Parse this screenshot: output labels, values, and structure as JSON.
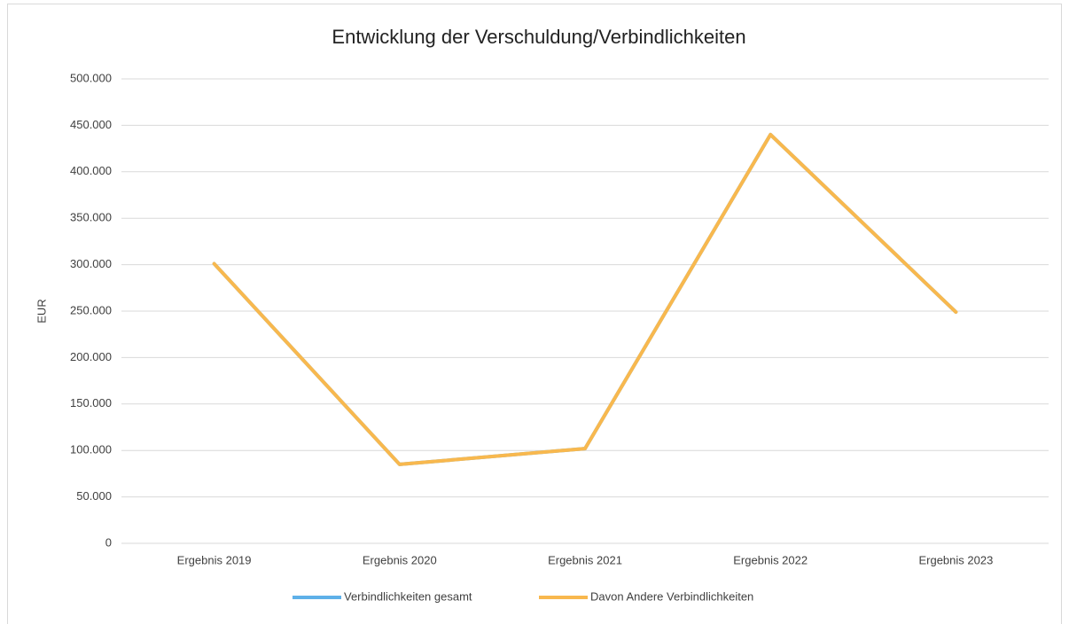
{
  "chart_data": {
    "type": "line",
    "title": "Entwicklung der Verschuldung/Verbindlichkeiten",
    "y_label": "EUR",
    "categories": [
      "Ergebnis 2019",
      "Ergebnis 2020",
      "Ergebnis 2021",
      "Ergebnis 2022",
      "Ergebnis 2023"
    ],
    "series": [
      {
        "name": "Verbindlichkeiten gesamt",
        "color": "#5eb0e8",
        "values": [
          301000,
          85000,
          102000,
          440000,
          249000
        ]
      },
      {
        "name": "Davon Andere Verbindlichkeiten",
        "color": "#f8b84e",
        "values": [
          301000,
          85000,
          102000,
          440000,
          249000
        ]
      }
    ],
    "ylim": [
      0,
      500000
    ],
    "yticks": [
      0,
      {
        "value": 50000,
        "label": "50.000"
      },
      {
        "value": 100000,
        "label": "100.000"
      },
      {
        "value": 150000,
        "label": "150.000"
      },
      {
        "value": 200000,
        "label": "200.000"
      },
      {
        "value": 250000,
        "label": "250.000"
      },
      {
        "value": 300000,
        "label": "300.000"
      },
      {
        "value": 350000,
        "label": "350.000"
      },
      {
        "value": 400000,
        "label": "400.000"
      },
      {
        "value": 450000,
        "label": "450.000"
      },
      {
        "value": 500000,
        "label": "500.000"
      }
    ],
    "grid": true,
    "legend": "bottom"
  }
}
